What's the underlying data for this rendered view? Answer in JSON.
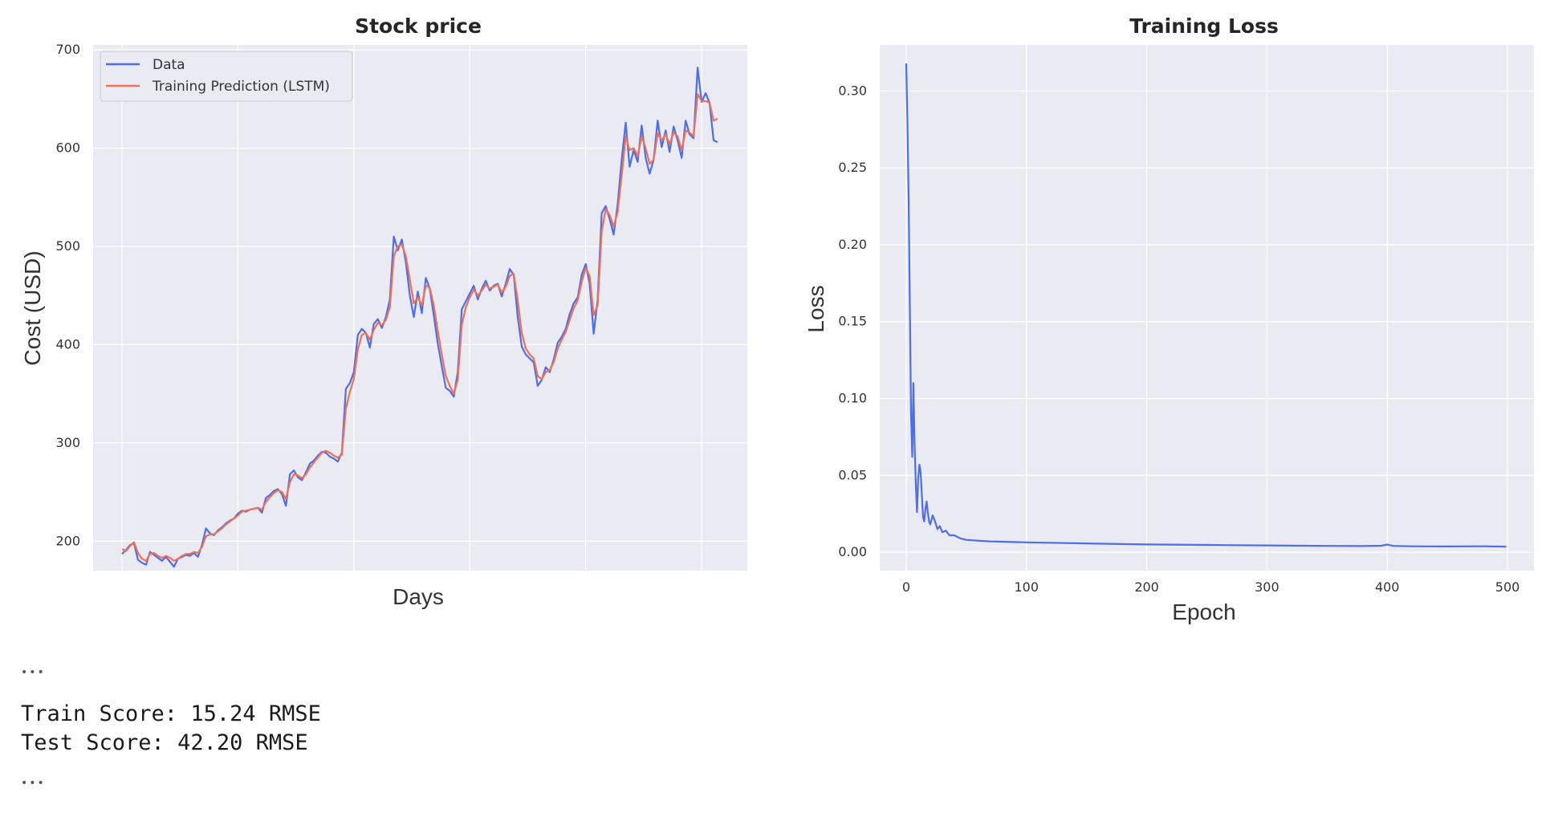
{
  "chart_data": [
    {
      "type": "line",
      "title": "Stock price",
      "xlabel": "Days",
      "ylabel": "Cost (USD)",
      "ylim": [
        170,
        705
      ],
      "x_ticks_labeled": false,
      "grid": true,
      "legend_placement": "top-left",
      "y_ticks": [
        200,
        300,
        400,
        500,
        600,
        700
      ],
      "y_tick_labels": [
        "200",
        "300",
        "400",
        "500",
        "600",
        "700"
      ],
      "series": [
        {
          "name": "Data",
          "color": "#4d6ee8",
          "values": [
            187,
            191,
            196,
            198,
            181,
            178,
            176,
            189,
            186,
            183,
            180,
            184,
            179,
            174,
            182,
            184,
            186,
            185,
            188,
            184,
            196,
            213,
            208,
            206,
            211,
            214,
            218,
            221,
            223,
            228,
            231,
            230,
            232,
            233,
            234,
            229,
            244,
            247,
            251,
            253,
            248,
            236,
            268,
            272,
            265,
            262,
            270,
            279,
            282,
            287,
            291,
            290,
            286,
            284,
            281,
            290,
            355,
            361,
            372,
            410,
            416,
            412,
            397,
            421,
            426,
            417,
            428,
            446,
            510,
            496,
            507,
            484,
            450,
            428,
            454,
            432,
            468,
            457,
            430,
            401,
            378,
            356,
            353,
            347,
            372,
            436,
            444,
            452,
            460,
            446,
            457,
            465,
            455,
            460,
            462,
            449,
            462,
            477,
            471,
            428,
            398,
            390,
            386,
            382,
            358,
            364,
            377,
            372,
            385,
            402,
            408,
            416,
            431,
            442,
            448,
            471,
            482,
            462,
            411,
            446,
            534,
            541,
            528,
            512,
            543,
            588,
            626,
            581,
            598,
            586,
            623,
            590,
            574,
            588,
            628,
            601,
            618,
            596,
            622,
            608,
            590,
            628,
            614,
            610,
            682,
            647,
            656,
            646,
            608,
            606
          ]
        },
        {
          "name": "Training Prediction (LSTM)",
          "color": "#f07057",
          "values": [
            192,
            190,
            195,
            199,
            188,
            182,
            180,
            187,
            188,
            185,
            183,
            185,
            183,
            180,
            182,
            185,
            187,
            187,
            189,
            188,
            194,
            205,
            207,
            207,
            210,
            213,
            217,
            220,
            223,
            226,
            230,
            231,
            232,
            233,
            234,
            232,
            240,
            245,
            249,
            252,
            250,
            243,
            260,
            268,
            267,
            264,
            268,
            275,
            280,
            285,
            290,
            292,
            290,
            287,
            285,
            288,
            335,
            352,
            365,
            395,
            410,
            412,
            405,
            415,
            422,
            420,
            425,
            438,
            490,
            500,
            502,
            490,
            466,
            442,
            448,
            440,
            460,
            458,
            440,
            414,
            390,
            368,
            358,
            350,
            364,
            420,
            438,
            448,
            456,
            450,
            455,
            461,
            457,
            459,
            461,
            453,
            459,
            470,
            472,
            445,
            412,
            396,
            390,
            386,
            368,
            365,
            372,
            374,
            382,
            396,
            405,
            413,
            425,
            437,
            445,
            464,
            478,
            470,
            430,
            440,
            515,
            538,
            532,
            520,
            535,
            572,
            612,
            598,
            600,
            592,
            612,
            600,
            584,
            588,
            615,
            608,
            614,
            604,
            616,
            612,
            598,
            618,
            616,
            612,
            655,
            648,
            648,
            646,
            628,
            630
          ]
        }
      ]
    },
    {
      "type": "line",
      "title": "Training Loss",
      "xlabel": "Epoch",
      "ylabel": "Loss",
      "xlim": [
        -22,
        522
      ],
      "ylim": [
        -0.012,
        0.33
      ],
      "grid": true,
      "x_ticks": [
        0,
        100,
        200,
        300,
        400,
        500
      ],
      "x_tick_labels": [
        "0",
        "100",
        "200",
        "300",
        "400",
        "500"
      ],
      "y_ticks": [
        0.0,
        0.05,
        0.1,
        0.15,
        0.2,
        0.25,
        0.3
      ],
      "y_tick_labels": [
        "0.00",
        "0.05",
        "0.10",
        "0.15",
        "0.20",
        "0.25",
        "0.30"
      ],
      "series": [
        {
          "color": "#4d6ee8",
          "x": [
            0,
            1,
            2,
            3,
            4,
            5,
            6,
            7,
            8,
            9,
            10,
            11,
            12,
            13,
            14,
            15,
            16,
            17,
            18,
            19,
            20,
            22,
            24,
            26,
            28,
            30,
            33,
            36,
            40,
            45,
            50,
            60,
            70,
            80,
            100,
            150,
            200,
            250,
            300,
            350,
            380,
            395,
            400,
            405,
            420,
            450,
            480,
            499
          ],
          "values": [
            0.318,
            0.28,
            0.23,
            0.16,
            0.09,
            0.062,
            0.11,
            0.07,
            0.045,
            0.026,
            0.048,
            0.057,
            0.052,
            0.038,
            0.023,
            0.02,
            0.028,
            0.033,
            0.026,
            0.02,
            0.018,
            0.024,
            0.02,
            0.015,
            0.017,
            0.013,
            0.014,
            0.011,
            0.011,
            0.009,
            0.008,
            0.0075,
            0.007,
            0.0068,
            0.0064,
            0.0057,
            0.005,
            0.0047,
            0.0044,
            0.0041,
            0.004,
            0.0042,
            0.0049,
            0.0041,
            0.0038,
            0.0037,
            0.0038,
            0.0036
          ]
        }
      ]
    }
  ],
  "output": {
    "ellipsis_top": "•••",
    "line1": "Train Score: 15.24 RMSE",
    "line2": "Test Score: 42.20 RMSE",
    "ellipsis_bottom": "•••"
  }
}
